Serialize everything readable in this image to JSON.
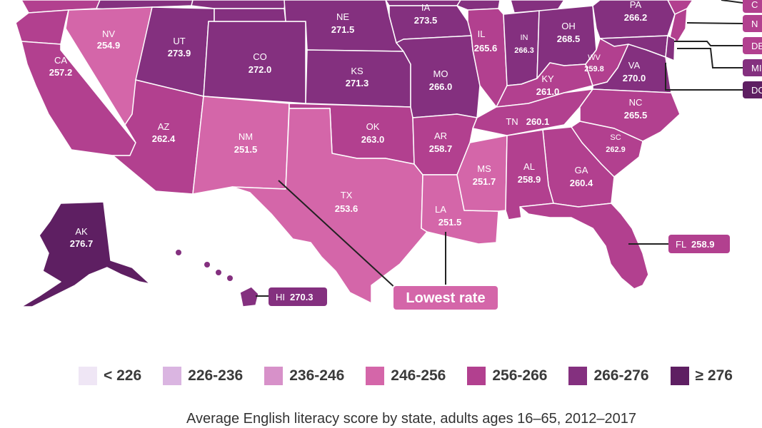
{
  "colors": {
    "bin_lt226": "#efe6f5",
    "bin_226_236": "#dab5e1",
    "bin_236_246": "#d791c9",
    "bin_246_256": "#d466a9",
    "bin_256_266": "#b2408f",
    "bin_266_276": "#84307f",
    "bin_ge276": "#5e1f62",
    "line": "#222222"
  },
  "states": {
    "nv": {
      "abbr": "NV",
      "score": "254.9"
    },
    "ca": {
      "abbr": "CA",
      "score": "257.2"
    },
    "ut": {
      "abbr": "UT",
      "score": "273.9"
    },
    "co": {
      "abbr": "CO",
      "score": "272.0"
    },
    "ne": {
      "abbr": "NE",
      "score": "271.5"
    },
    "ks": {
      "abbr": "KS",
      "score": "271.3"
    },
    "ia": {
      "abbr": "IA",
      "score": "273.5"
    },
    "mo": {
      "abbr": "MO",
      "score": "266.0"
    },
    "il": {
      "abbr": "IL",
      "score": "265.6"
    },
    "in": {
      "abbr": "IN",
      "score": "266.3"
    },
    "oh": {
      "abbr": "OH",
      "score": "268.5"
    },
    "pa": {
      "abbr": "PA",
      "score": "266.2"
    },
    "wv": {
      "abbr": "WV",
      "score": "259.8"
    },
    "va": {
      "abbr": "VA",
      "score": "270.0"
    },
    "ky": {
      "abbr": "KY",
      "score": "261.0"
    },
    "nc": {
      "abbr": "NC",
      "score": "265.5"
    },
    "tn": {
      "abbr": "TN",
      "score": "260.1"
    },
    "sc": {
      "abbr": "SC",
      "score": "262.9"
    },
    "az": {
      "abbr": "AZ",
      "score": "262.4"
    },
    "nm": {
      "abbr": "NM",
      "score": "251.5"
    },
    "ok": {
      "abbr": "OK",
      "score": "263.0"
    },
    "ar": {
      "abbr": "AR",
      "score": "258.7"
    },
    "tx": {
      "abbr": "TX",
      "score": "253.6"
    },
    "ms": {
      "abbr": "MS",
      "score": "251.7"
    },
    "al": {
      "abbr": "AL",
      "score": "258.9"
    },
    "ga": {
      "abbr": "GA",
      "score": "260.4"
    },
    "la": {
      "abbr": "LA",
      "score": "251.5"
    },
    "ak": {
      "abbr": "AK",
      "score": "276.7"
    }
  },
  "callouts": {
    "hi": {
      "abbr": "HI",
      "score": "270.3"
    },
    "fl": {
      "abbr": "FL",
      "score": "258.9"
    },
    "east_tabs": [
      "C",
      "N",
      "DE",
      "MI",
      "DC"
    ]
  },
  "lowest_rate_label": "Lowest rate",
  "legend": [
    "< 226",
    "226-236",
    "236-246",
    "246-256",
    "256-266",
    "266-276",
    "≥ 276"
  ],
  "caption": "Average English literacy score by state, adults ages 16–65, 2012–2017"
}
